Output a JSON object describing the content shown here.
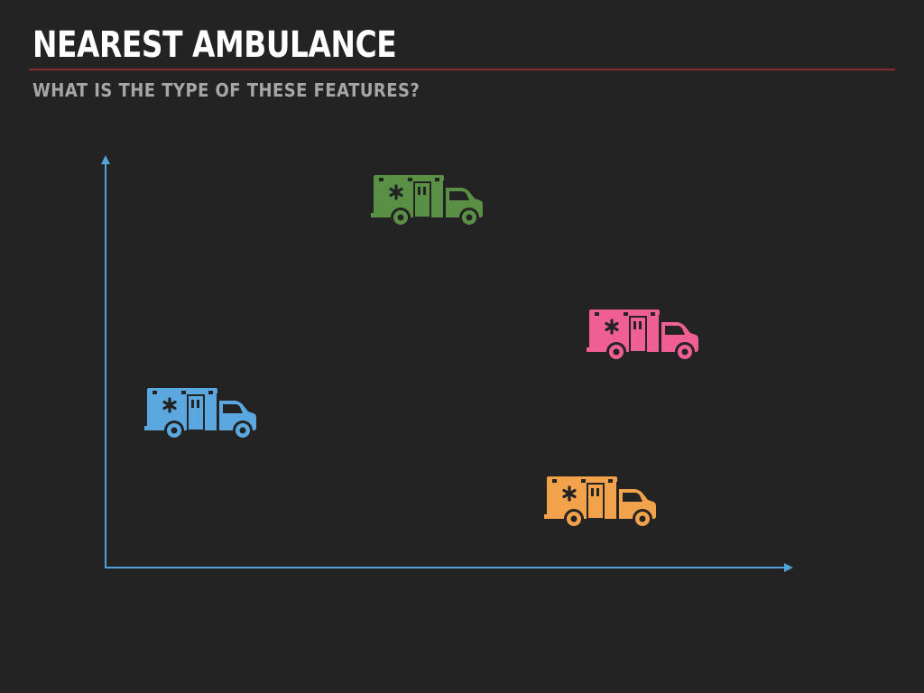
{
  "slide": {
    "title": "NEAREST AMBULANCE",
    "subtitle": "WHAT IS THE TYPE OF THESE FEATURES?"
  },
  "colors": {
    "background": "#232323",
    "title": "#ffffff",
    "subtitle": "#a6a6a6",
    "rule": "#8c2b2b",
    "axis": "#4fa3d9"
  },
  "diagram": {
    "axes": "x and y arrows, no labels",
    "ambulances": [
      {
        "icon": "ambulance-icon",
        "color_name": "green",
        "color": "#5a8f46"
      },
      {
        "icon": "ambulance-icon",
        "color_name": "pink",
        "color": "#ef5f93"
      },
      {
        "icon": "ambulance-icon",
        "color_name": "blue",
        "color": "#5aa8df"
      },
      {
        "icon": "ambulance-icon",
        "color_name": "orange",
        "color": "#f2a24b"
      }
    ]
  }
}
